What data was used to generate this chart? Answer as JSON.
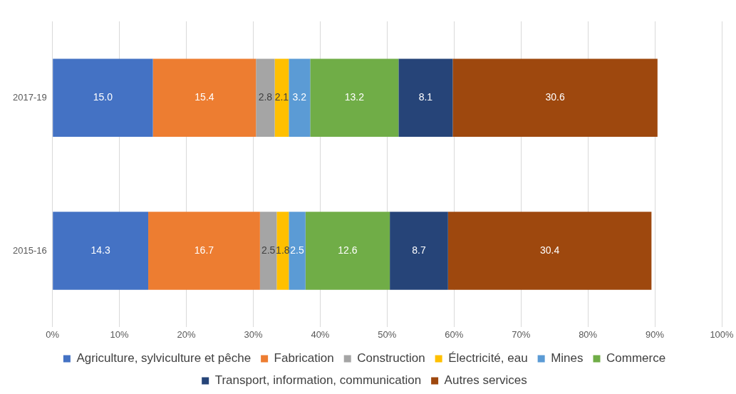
{
  "chart_data": {
    "type": "bar",
    "orientation": "horizontal",
    "stacked": true,
    "categories": [
      "2017-19",
      "2015-16"
    ],
    "series": [
      {
        "name": "Agriculture, sylviculture et pêche",
        "color": "#4472c4",
        "values": [
          15.0,
          14.3
        ],
        "value_labels": [
          "15.0",
          "14.3"
        ]
      },
      {
        "name": "Fabrication",
        "color": "#ed7d31",
        "values": [
          15.4,
          16.7
        ],
        "value_labels": [
          "15.4",
          "16.7"
        ]
      },
      {
        "name": "Construction",
        "color": "#a5a5a5",
        "values": [
          2.8,
          2.5
        ],
        "value_labels": [
          "2.8",
          "2.5"
        ]
      },
      {
        "name": "Électricité, eau",
        "color": "#ffc000",
        "values": [
          2.1,
          1.8
        ],
        "value_labels": [
          "2.1",
          "1.8"
        ]
      },
      {
        "name": "Mines",
        "color": "#5b9bd5",
        "values": [
          3.2,
          2.5
        ],
        "value_labels": [
          "3.2",
          "2.5"
        ]
      },
      {
        "name": "Commerce",
        "color": "#70ad47",
        "values": [
          13.2,
          12.6
        ],
        "value_labels": [
          "13.2",
          "12.6"
        ]
      },
      {
        "name": "Transport, information, communication",
        "color": "#264478",
        "values": [
          8.1,
          8.7
        ],
        "value_labels": [
          "8.1",
          "8.7"
        ]
      },
      {
        "name": "Autres services",
        "color": "#9e480e",
        "values": [
          30.6,
          30.4
        ],
        "value_labels": [
          "30.6",
          "30.4"
        ]
      }
    ],
    "xlim": [
      0,
      100
    ],
    "xticks": [
      {
        "value": 0,
        "label": "0%"
      },
      {
        "value": 10,
        "label": "10%"
      },
      {
        "value": 20,
        "label": "20%"
      },
      {
        "value": 30,
        "label": "30%"
      },
      {
        "value": 40,
        "label": "40%"
      },
      {
        "value": 50,
        "label": "50%"
      },
      {
        "value": 60,
        "label": "60%"
      },
      {
        "value": 70,
        "label": "70%"
      },
      {
        "value": 80,
        "label": "80%"
      },
      {
        "value": 90,
        "label": "90%"
      },
      {
        "value": 100,
        "label": "100%"
      }
    ],
    "grid": "x",
    "legend": "bottom"
  }
}
